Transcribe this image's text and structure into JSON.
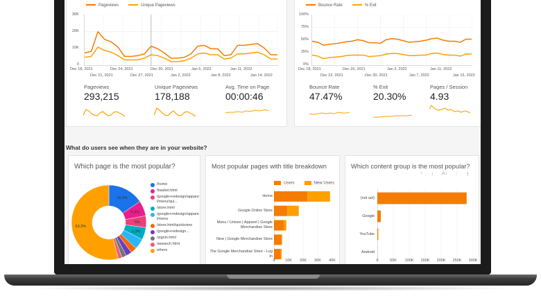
{
  "dashboard": {
    "section_title": "What do users see when they are in your website?",
    "pageviews_chart": {
      "legend": [
        {
          "label": "Pageviews",
          "color": "#f57c00"
        },
        {
          "label": "Unique Pageviews",
          "color": "#ffa000"
        }
      ],
      "y_ticks": [
        "30K",
        "20K",
        "10K",
        "0"
      ],
      "x_ticks_top": [
        "Dec 18, 2021",
        "Dec 24, 2021",
        "Dec 30, 2021",
        "Jan 5, 2022",
        "Jan 11, 2022"
      ],
      "x_ticks_bottom": [
        "Dec 21, 2021",
        "Dec 27, 2021",
        "Jan 2, 2022",
        "Jan 8, 2022",
        "Jan 14, 2022"
      ]
    },
    "bounce_chart": {
      "legend": [
        {
          "label": "Bounce Rate",
          "color": "#f57c00"
        },
        {
          "label": "% Exit",
          "color": "#ffa000"
        }
      ],
      "y_ticks": [
        "100%",
        "75%",
        "50%",
        "25%",
        "0%"
      ],
      "x_ticks_top": [
        "Dec 18, 2021",
        "Dec 26, 2021",
        "Jan 3, 2022",
        "Jan 11, 2022"
      ],
      "x_ticks_bottom": [
        "Dec 22, 2021",
        "Dec 30, 2021",
        "Jan 7, 2022",
        "Jan 15, 2022"
      ]
    },
    "kpis_left": [
      {
        "label": "Pageviews",
        "value": "293,215"
      },
      {
        "label": "Unique Pageviews",
        "value": "178,188"
      },
      {
        "label": "Avg. Time on Page",
        "value": "00:00:46"
      }
    ],
    "kpis_right": [
      {
        "label": "Bounce Rate",
        "value": "47.47%"
      },
      {
        "label": "% Exit",
        "value": "20.30%"
      },
      {
        "label": "Pages / Session",
        "value": "4.93"
      }
    ],
    "popular_page_card": {
      "title": "Which page is the most popular?"
    },
    "title_breakdown_card": {
      "title": "Most popular pages with title breakdown"
    },
    "content_group_card": {
      "title": "Which content group is the most popular?",
      "icons": [
        "sort-ascending-icon",
        "sort-descending-icon",
        "sort-az-icon",
        "more-vert-icon"
      ],
      "icon_glyphs": [
        "↑",
        "↓",
        "A↕",
        "⋮"
      ]
    }
  },
  "chart_data": [
    {
      "type": "line",
      "title": "Pageviews vs Unique Pageviews",
      "xlabel": "",
      "ylabel": "",
      "ylim": [
        0,
        30000
      ],
      "x": [
        "Dec 18",
        "Dec 19",
        "Dec 20",
        "Dec 21",
        "Dec 22",
        "Dec 23",
        "Dec 24",
        "Dec 25",
        "Dec 26",
        "Dec 27",
        "Dec 28",
        "Dec 29",
        "Dec 30",
        "Dec 31",
        "Jan 1",
        "Jan 2",
        "Jan 3",
        "Jan 4",
        "Jan 5",
        "Jan 6",
        "Jan 7",
        "Jan 8",
        "Jan 9",
        "Jan 10",
        "Jan 11",
        "Jan 12",
        "Jan 13",
        "Jan 14",
        "Jan 15",
        "Jan 16"
      ],
      "series": [
        {
          "name": "Pageviews",
          "color": "#f57c00",
          "values": [
            7500,
            8500,
            20000,
            15500,
            14000,
            11000,
            5500,
            5500,
            6000,
            7000,
            11500,
            10000,
            7500,
            4500,
            4500,
            5000,
            7000,
            11500,
            12000,
            10000,
            10000,
            6000,
            6500,
            12000,
            12000,
            12500,
            13000,
            10500,
            6500,
            6500
          ]
        },
        {
          "name": "Unique Pageviews",
          "color": "#ffa000",
          "values": [
            5000,
            5500,
            11000,
            9000,
            8000,
            6000,
            3500,
            3500,
            3500,
            4500,
            6500,
            6000,
            4500,
            2500,
            2500,
            3000,
            4500,
            7000,
            7500,
            6500,
            6500,
            4000,
            4500,
            7000,
            7000,
            7500,
            8000,
            6500,
            4000,
            4000
          ]
        }
      ]
    },
    {
      "type": "line",
      "title": "Bounce Rate vs % Exit",
      "xlabel": "",
      "ylabel": "",
      "ylim": [
        0,
        100
      ],
      "x": [
        "Dec 18",
        "Dec 19",
        "Dec 20",
        "Dec 21",
        "Dec 22",
        "Dec 23",
        "Dec 24",
        "Dec 25",
        "Dec 26",
        "Dec 27",
        "Dec 28",
        "Dec 29",
        "Dec 30",
        "Dec 31",
        "Jan 1",
        "Jan 2",
        "Jan 3",
        "Jan 4",
        "Jan 5",
        "Jan 6",
        "Jan 7",
        "Jan 8",
        "Jan 9",
        "Jan 10",
        "Jan 11",
        "Jan 12",
        "Jan 13",
        "Jan 14",
        "Jan 15"
      ],
      "series": [
        {
          "name": "Bounce Rate",
          "color": "#f57c00",
          "values": [
            48,
            46,
            40,
            42,
            43,
            45,
            47,
            48,
            51,
            49,
            45,
            45,
            44,
            51,
            53,
            52,
            49,
            46,
            47,
            48,
            50,
            53,
            54,
            50,
            48,
            48,
            46,
            52,
            52
          ]
        },
        {
          "name": "% Exit",
          "color": "#ffa000",
          "values": [
            21,
            19,
            14,
            16,
            17,
            18,
            20,
            21,
            21,
            21,
            18,
            19,
            20,
            23,
            24,
            24,
            22,
            20,
            20,
            21,
            21,
            24,
            25,
            22,
            21,
            21,
            19,
            23,
            23
          ]
        }
      ]
    },
    {
      "type": "pie",
      "title": "Which page is the most popular?",
      "donut": true,
      "slices": [
        {
          "label": "/home",
          "value": 15.3,
          "color": "#1a73e8",
          "show_label": true
        },
        {
          "label": "/basket.html",
          "value": 6.5,
          "color": "#e91e8c",
          "show_label": true
        },
        {
          "label": "/google+redesign/apparel/mens/qui...",
          "value": 5.0,
          "color": "#ec407a",
          "show_label": true
        },
        {
          "label": "/store.html",
          "value": 5.3,
          "color": "#00acc1",
          "show_label": true
        },
        {
          "label": "/google+redesign/apparel/mens",
          "value": 4.5,
          "color": "#29b6f6",
          "show_label": false
        },
        {
          "label": "/store.html/quickview",
          "value": 2.6,
          "color": "#f4670c",
          "show_label": false
        },
        {
          "label": "/google+redesign...",
          "value": 2.5,
          "color": "#6a3fbf",
          "show_label": false
        },
        {
          "label": "/signin.html",
          "value": 2.0,
          "color": "#757575",
          "show_label": false
        },
        {
          "label": "/asearch.html",
          "value": 1.6,
          "color": "#ef5b6f",
          "show_label": false
        },
        {
          "label": "others",
          "value": 53.3,
          "color": "#ffa000",
          "show_label": true
        }
      ]
    },
    {
      "type": "bar",
      "orientation": "horizontal",
      "stacked": true,
      "title": "Most popular pages with title breakdown",
      "categories": [
        "Home",
        "Google Online Store",
        "Mens / Unisex | Apparel | Google Merchandise Store",
        "New | Google Merchandise Store",
        "The Google Merchandise Store - Log In"
      ],
      "series": [
        {
          "name": "Users",
          "color": "#f57c00",
          "values": [
            23000,
            9000,
            7000,
            5000,
            4500
          ]
        },
        {
          "name": "New Users",
          "color": "#ffa000",
          "values": [
            15500,
            8000,
            1500,
            600,
            800
          ]
        }
      ],
      "xlim": [
        0,
        40000
      ],
      "x_ticks": [
        "0",
        "10K",
        "20K",
        "30K",
        "40K"
      ]
    },
    {
      "type": "bar",
      "orientation": "horizontal",
      "title": "Which content group is the most popular?",
      "categories": [
        "(not set)",
        "Google",
        "YouTube",
        "Android"
      ],
      "values": [
        280000,
        11000,
        3000,
        600
      ],
      "color": "#f57c00",
      "xlim": [
        0,
        300000
      ],
      "x_ticks": [
        "0",
        "50K",
        "100K",
        "150K",
        "200K",
        "250K",
        "300K"
      ]
    }
  ]
}
